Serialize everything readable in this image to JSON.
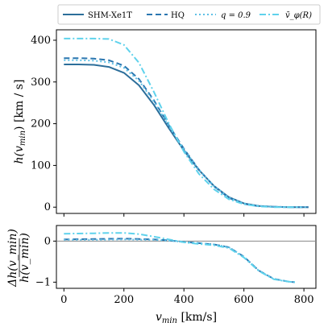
{
  "chart_data": [
    {
      "type": "line",
      "panel": "top",
      "ylabel_main": "h",
      "ylabel_sub": "min",
      "ylabel_rest": ") [km / s]",
      "ylabel_var": "(v",
      "xlim": [
        -25,
        840
      ],
      "ylim": [
        -15,
        425
      ],
      "yticks": [
        0,
        100,
        200,
        300,
        400
      ],
      "ytick_labels": [
        "0",
        "100",
        "200",
        "300",
        "400"
      ],
      "grid": false,
      "legend_position": "top",
      "series": [
        {
          "name": "SHM-Xe1T",
          "color": "#2c6e9a",
          "style": "solid",
          "x": [
            0,
            50,
            100,
            150,
            200,
            250,
            300,
            350,
            400,
            450,
            500,
            550,
            600,
            650,
            700,
            750,
            800,
            815
          ],
          "y": [
            342,
            342,
            341,
            336,
            322,
            292,
            245,
            189,
            136,
            89,
            51,
            24,
            9,
            3,
            1,
            0,
            0,
            0
          ]
        },
        {
          "name": "HQ",
          "color": "#2a76b0",
          "style": "dashed",
          "x": [
            0,
            50,
            100,
            150,
            200,
            250,
            300,
            350,
            400,
            450,
            500,
            550,
            600,
            650,
            700,
            750,
            800,
            815
          ],
          "y": [
            357,
            357,
            356,
            352,
            339,
            307,
            256,
            196,
            140,
            90,
            50,
            22,
            8,
            2,
            1,
            0,
            0,
            0
          ]
        },
        {
          "name": "q = 0.9",
          "color": "#5ec0e6",
          "style": "dotted",
          "x": [
            0,
            50,
            100,
            150,
            200,
            250,
            300,
            350,
            400,
            450,
            500,
            550,
            600,
            650,
            700,
            750,
            800,
            815
          ],
          "y": [
            352,
            352,
            351,
            347,
            334,
            303,
            253,
            194,
            139,
            90,
            51,
            23,
            9,
            3,
            1,
            0,
            0,
            0
          ]
        },
        {
          "name": "v̄_φ(R)",
          "color": "#5fd2ec",
          "style": "dashdot",
          "x": [
            0,
            50,
            100,
            150,
            200,
            250,
            300,
            350,
            400,
            450,
            500,
            550,
            600,
            650,
            700,
            750,
            790
          ],
          "y": [
            404,
            404,
            404,
            403,
            389,
            346,
            276,
            200,
            133,
            80,
            43,
            19,
            7,
            2,
            0,
            0,
            0
          ]
        }
      ]
    },
    {
      "type": "line",
      "panel": "bottom",
      "xlabel_var": "v",
      "xlabel_sub": "min",
      "xlabel_rest": " [km/s]",
      "ylabel_num": "Δh(v_min)",
      "ylabel_den": "h(v_min)",
      "xlim": [
        -25,
        840
      ],
      "ylim": [
        -1.15,
        0.38
      ],
      "xticks": [
        0,
        200,
        400,
        600,
        800
      ],
      "xtick_labels": [
        "0",
        "200",
        "400",
        "600",
        "800"
      ],
      "yticks": [
        -1,
        0
      ],
      "ytick_labels": [
        "−1",
        "0"
      ],
      "reference_line_y": 0,
      "series": [
        {
          "name": "HQ",
          "color": "#2a76b0",
          "style": "dashed",
          "x": [
            0,
            100,
            200,
            250,
            300,
            350,
            400,
            450,
            500,
            550,
            600,
            650,
            700,
            750,
            770
          ],
          "y": [
            0.04,
            0.05,
            0.06,
            0.05,
            0.04,
            0.02,
            -0.02,
            -0.05,
            -0.08,
            -0.15,
            -0.38,
            -0.72,
            -0.92,
            -0.99,
            -1.0
          ]
        },
        {
          "name": "q = 0.9",
          "color": "#5ec0e6",
          "style": "dotted",
          "x": [
            0,
            100,
            200,
            250,
            300,
            350,
            400,
            450,
            500,
            550,
            600,
            650,
            700,
            750,
            770
          ],
          "y": [
            0.03,
            0.03,
            0.04,
            0.035,
            0.03,
            0.01,
            -0.02,
            -0.05,
            -0.08,
            -0.15,
            -0.38,
            -0.72,
            -0.92,
            -0.99,
            -1.0
          ]
        },
        {
          "name": "v̄_φ(R)",
          "color": "#5fd2ec",
          "style": "dashdot",
          "x": [
            0,
            100,
            150,
            200,
            250,
            300,
            350,
            400,
            450,
            500,
            550,
            600,
            650,
            700,
            750,
            770
          ],
          "y": [
            0.18,
            0.19,
            0.2,
            0.2,
            0.17,
            0.11,
            0.04,
            -0.03,
            -0.07,
            -0.1,
            -0.17,
            -0.4,
            -0.73,
            -0.93,
            -0.99,
            -1.0
          ]
        }
      ]
    }
  ]
}
